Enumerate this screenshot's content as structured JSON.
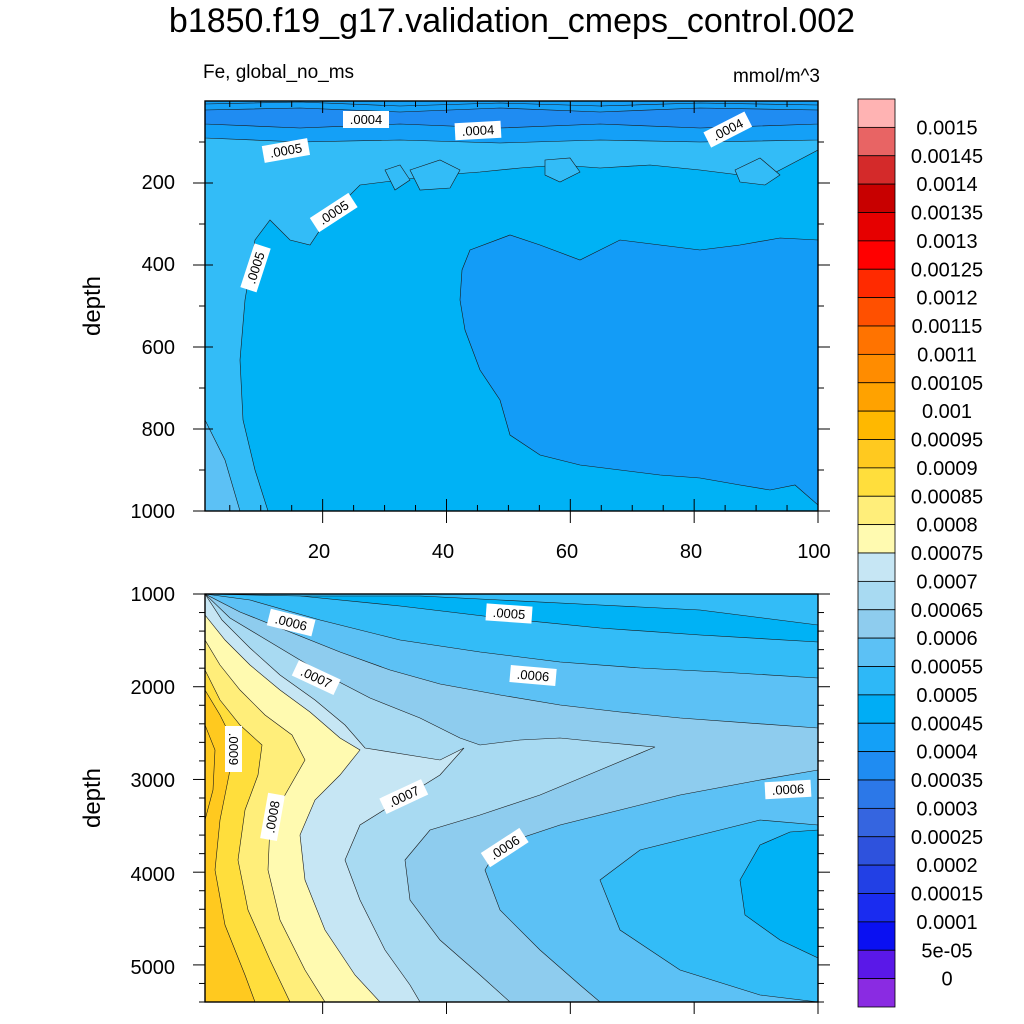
{
  "chart_data": {
    "type": "contour",
    "title": "b1850.f19_g17.validation_cmeps_control.002",
    "variable_label": "Fe, global_no_ms",
    "units": "mmol/m^3",
    "colorbar": {
      "labels": [
        "0.0015",
        "0.00145",
        "0.0014",
        "0.00135",
        "0.0013",
        "0.00125",
        "0.0012",
        "0.00115",
        "0.0011",
        "0.00105",
        "0.001",
        "0.00095",
        "0.0009",
        "0.00085",
        "0.0008",
        "0.00075",
        "0.0007",
        "0.00065",
        "0.0006",
        "0.00055",
        "0.0005",
        "0.00045",
        "0.0004",
        "0.00035",
        "0.0003",
        "0.00025",
        "0.0002",
        "0.00015",
        "0.0001",
        "5e-05",
        "0"
      ],
      "colors": [
        "#FFB3B3",
        "#E86464",
        "#D42A2A",
        "#C80000",
        "#E60000",
        "#FF0000",
        "#FF2A00",
        "#FF5000",
        "#FF7300",
        "#FF8C00",
        "#FFA200",
        "#FFB800",
        "#FFC91F",
        "#FFDE3C",
        "#FFEE7A",
        "#FFFAB0",
        "#C6E6F4",
        "#A8DAF2",
        "#8ECCEE",
        "#5CC1F5",
        "#2EB8F7",
        "#00ADF5",
        "#14A0F7",
        "#1F8CF2",
        "#2C78E8",
        "#3565E0",
        "#2E52DD",
        "#2240E5",
        "#1A2CF0",
        "#0A10F2",
        "#5A18E8",
        "#8A2BE2"
      ]
    },
    "upper_panel": {
      "ylabel": "depth",
      "ylim": [
        0,
        1000
      ],
      "yticks": [
        "200",
        "400",
        "600",
        "800",
        "1000"
      ],
      "xticks": [
        "20",
        "40",
        "60",
        "80",
        "100"
      ],
      "contour_labels": [
        ".0004",
        ".0004",
        ".0004",
        ".0005",
        ".0005",
        ".0005"
      ]
    },
    "lower_panel": {
      "ylabel": "depth",
      "ylim": [
        1000,
        5400
      ],
      "yticks": [
        "1000",
        "2000",
        "3000",
        "4000",
        "5000"
      ],
      "contour_labels": [
        ".0005",
        ".0006",
        ".0006",
        ".0006",
        ".0006",
        ".0007",
        ".0007",
        ".0008",
        ".0009"
      ]
    }
  }
}
